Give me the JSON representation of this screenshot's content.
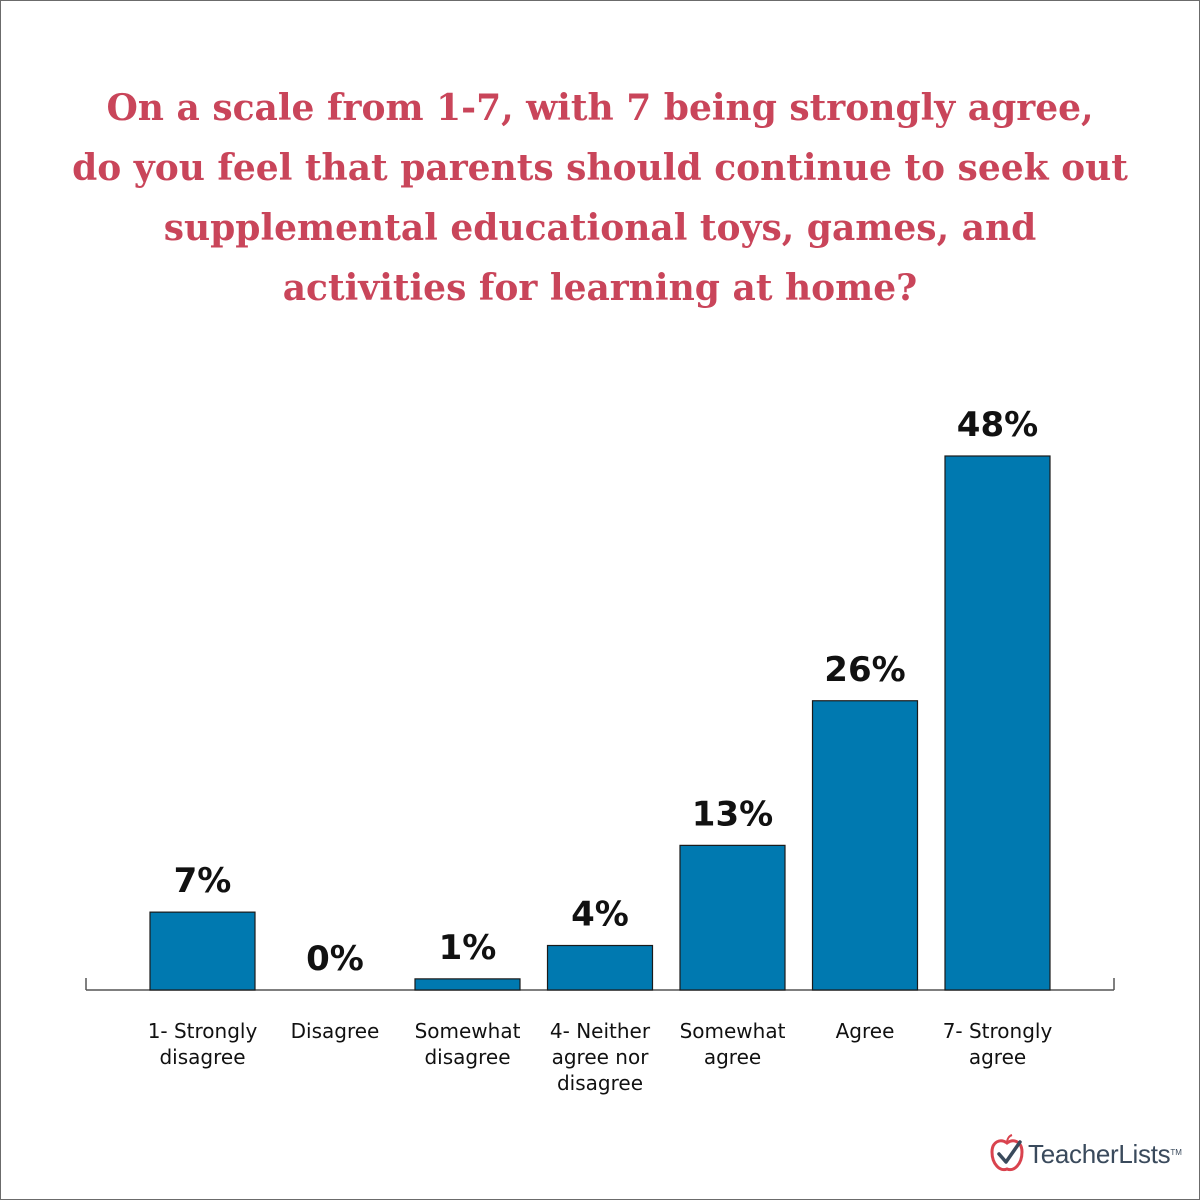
{
  "colors": {
    "title": "#c9455a",
    "bar": "#0079b0",
    "bar_border": "#1a1a1a",
    "text": "#111111",
    "logo_apple": "#d9434e",
    "logo_text": "#3a4a5c"
  },
  "title_lines": [
    "On a scale from 1-7, with 7 being strongly agree,",
    "do you feel that parents should continue to seek out",
    "supplemental educational toys, games, and",
    "activities for learning at home?"
  ],
  "logo": {
    "text": "TeacherLists",
    "tm": "TM",
    "icon": "apple-check-icon"
  },
  "chart_data": {
    "type": "bar",
    "categories": [
      [
        "1- Strongly",
        "disagree"
      ],
      [
        "Disagree"
      ],
      [
        "Somewhat",
        "disagree"
      ],
      [
        "4- Neither",
        "agree nor",
        "disagree"
      ],
      [
        "Somewhat",
        "agree"
      ],
      [
        "Agree"
      ],
      [
        "7- Strongly",
        "agree"
      ]
    ],
    "values": [
      7,
      0,
      1,
      4,
      13,
      26,
      48
    ],
    "value_labels": [
      "7%",
      "0%",
      "1%",
      "4%",
      "13%",
      "26%",
      "48%"
    ],
    "unit": "%",
    "title": "On a scale from 1-7, with 7 being strongly agree, do you feel that parents should continue to seek out supplemental educational toys, games, and activities for learning at home?",
    "xlabel": "",
    "ylabel": "",
    "ylim": [
      0,
      48
    ],
    "grid": false,
    "legend": "none"
  }
}
